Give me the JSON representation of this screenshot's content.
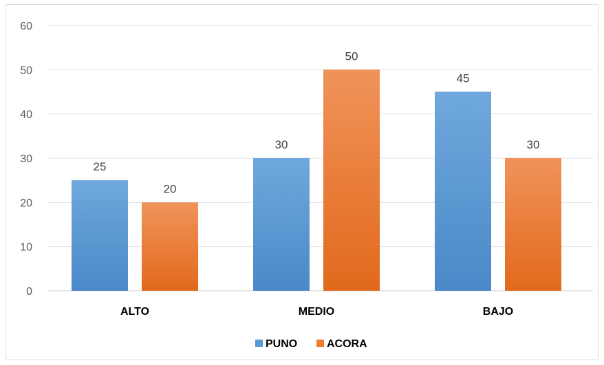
{
  "chart_data": {
    "type": "bar",
    "title": "",
    "xlabel": "",
    "ylabel": "",
    "categories": [
      "ALTO",
      "MEDIO",
      "BAJO"
    ],
    "series": [
      {
        "name": "PUNO",
        "values": [
          25,
          30,
          45
        ],
        "color": "#5b9bd5"
      },
      {
        "name": "ACORA",
        "values": [
          20,
          50,
          30
        ],
        "color": "#ed7d31"
      }
    ],
    "ylim": [
      0,
      60
    ],
    "yticks": [
      "0",
      "10",
      "20",
      "30",
      "40",
      "50",
      "60"
    ],
    "grid": true,
    "legend_position": "bottom"
  }
}
